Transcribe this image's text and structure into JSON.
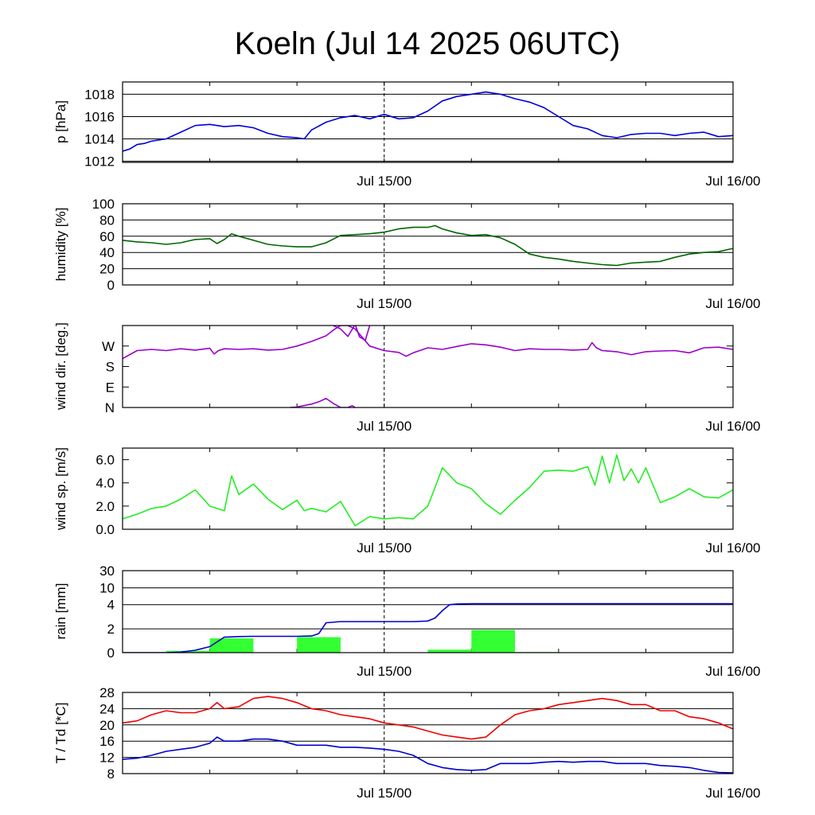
{
  "title": "Koeln (Jul 14 2025 06UTC)",
  "colors": {
    "pressure": "#0000dd",
    "humidity": "#006600",
    "wind_dir": "#9900cc",
    "wind_speed": "#22ee22",
    "rain_bar": "#33ff33",
    "rain_cum": "#0000cc",
    "temperature": "#ee0000",
    "dewpoint": "#0000cc"
  },
  "chart_data": [
    {
      "type": "line",
      "ylabel": "p [hPa]",
      "x_tick_labels": [
        "Jul 15/00",
        "Jul 16/00"
      ],
      "x_tick_hours": [
        18,
        42
      ],
      "xlim": [
        0,
        42
      ],
      "ylim": [
        1011.9,
        1019.1
      ],
      "ytick_values": [
        1012,
        1014,
        1016,
        1018
      ],
      "ytick_labels": [
        "1012",
        "1014",
        "1016",
        "1018"
      ],
      "series": [
        {
          "x": [
            0,
            0.5,
            1,
            1.5,
            2,
            3,
            4,
            5,
            6,
            7,
            8,
            9,
            10,
            11,
            12,
            12.5,
            13,
            14,
            15,
            16,
            17,
            18,
            19,
            20,
            21,
            22,
            23,
            24,
            25,
            26,
            27,
            28,
            29,
            30,
            31,
            32,
            33,
            34,
            35,
            36,
            37,
            38,
            39,
            40,
            41,
            42
          ],
          "y": [
            1012.9,
            1013.1,
            1013.5,
            1013.6,
            1013.8,
            1014.0,
            1014.6,
            1015.2,
            1015.3,
            1015.1,
            1015.2,
            1015.0,
            1014.5,
            1014.2,
            1014.1,
            1014.0,
            1014.8,
            1015.5,
            1015.9,
            1016.1,
            1015.8,
            1016.2,
            1015.8,
            1015.9,
            1016.5,
            1017.4,
            1017.8,
            1018.0,
            1018.2,
            1018.0,
            1017.6,
            1017.3,
            1016.8,
            1016.0,
            1015.2,
            1014.9,
            1014.3,
            1014.1,
            1014.4,
            1014.5,
            1014.5,
            1014.3,
            1014.5,
            1014.6,
            1014.2,
            1014.3
          ]
        }
      ]
    },
    {
      "type": "line",
      "ylabel": "humidity [%]",
      "x_tick_labels": [
        "Jul 15/00",
        "Jul 16/00"
      ],
      "x_tick_hours": [
        18,
        42
      ],
      "xlim": [
        0,
        42
      ],
      "ylim": [
        0,
        100
      ],
      "ytick_values": [
        0,
        20,
        40,
        60,
        80,
        100
      ],
      "ytick_labels": [
        "0",
        "20",
        "40",
        "60",
        "80",
        "100"
      ],
      "series": [
        {
          "x": [
            0,
            1,
            2,
            3,
            4,
            5,
            6,
            6.5,
            7,
            7.5,
            8,
            9,
            10,
            11,
            12,
            13,
            14,
            15,
            16,
            17,
            18,
            19,
            20,
            21,
            21.5,
            22,
            23,
            24,
            25,
            26,
            27,
            28,
            29,
            30,
            31,
            32,
            33,
            34,
            35,
            36,
            37,
            38,
            39,
            40,
            41,
            42
          ],
          "y": [
            55,
            53,
            52,
            50,
            52,
            56,
            57,
            51,
            56,
            63,
            60,
            55,
            50,
            48,
            47,
            47,
            52,
            61,
            62,
            63,
            65,
            69,
            71,
            71,
            73,
            69,
            64,
            61,
            62,
            58,
            50,
            38,
            34,
            32,
            29,
            27,
            25,
            24,
            27,
            28,
            29,
            34,
            38,
            40,
            41,
            45
          ]
        }
      ]
    },
    {
      "type": "line",
      "ylabel": "wind dir. [deg.]",
      "x_tick_labels": [
        "Jul 15/00",
        "Jul 16/00"
      ],
      "x_tick_hours": [
        18,
        42
      ],
      "xlim": [
        0,
        42
      ],
      "ylim": [
        0,
        360
      ],
      "ytick_values": [
        0,
        90,
        180,
        270
      ],
      "ytick_labels": [
        "N",
        "E",
        "S",
        "W"
      ],
      "series": [
        {
          "x": [
            0,
            1,
            2,
            3,
            4,
            5,
            6,
            6.3,
            6.6,
            7,
            8,
            9,
            10,
            11,
            12,
            13,
            14,
            14.5,
            15,
            15.5,
            16,
            17,
            18,
            19,
            19.5,
            20,
            21,
            22,
            23,
            24,
            25,
            26,
            27,
            28,
            29,
            30,
            31,
            32,
            32.3,
            32.6,
            33,
            34,
            35,
            36,
            37,
            38,
            39,
            40,
            41,
            42
          ],
          "y": [
            215,
            250,
            255,
            250,
            258,
            252,
            260,
            235,
            250,
            258,
            255,
            258,
            252,
            255,
            270,
            290,
            315,
            340,
            360,
            360,
            345,
            270,
            250,
            242,
            225,
            240,
            262,
            255,
            268,
            280,
            275,
            265,
            250,
            258,
            255,
            255,
            252,
            255,
            285,
            262,
            250,
            245,
            232,
            245,
            248,
            250,
            240,
            262,
            265,
            255
          ]
        },
        {
          "x": [
            14.5,
            15,
            15.5,
            16,
            16.3,
            16.7,
            17
          ],
          "y": [
            360,
            345,
            312,
            365,
            310,
            295,
            360
          ]
        },
        {
          "x": [
            11.5,
            12,
            13,
            13.5,
            14,
            14.5,
            15,
            15.5,
            15.8,
            16
          ],
          "y": [
            0,
            2,
            15,
            25,
            40,
            18,
            0,
            0,
            8,
            0
          ]
        }
      ]
    },
    {
      "type": "line",
      "ylabel": "wind sp. [m/s]",
      "x_tick_labels": [
        "Jul 15/00",
        "Jul 16/00"
      ],
      "x_tick_hours": [
        18,
        42
      ],
      "xlim": [
        0,
        42
      ],
      "ylim": [
        0,
        7
      ],
      "ytick_values": [
        0,
        2,
        4,
        6
      ],
      "ytick_labels": [
        "0.0",
        "2.0",
        "4.0",
        "6.0"
      ],
      "series": [
        {
          "x": [
            0,
            1,
            2,
            3,
            4,
            5,
            6,
            7,
            7.5,
            8,
            9,
            10,
            11,
            12,
            12.5,
            13,
            14,
            15,
            16,
            17,
            18,
            19,
            20,
            21,
            21.5,
            22,
            23,
            24,
            25,
            26,
            27,
            28,
            29,
            30,
            31,
            32,
            32.5,
            33,
            33.5,
            34,
            34.5,
            35,
            35.5,
            36,
            37,
            38,
            39,
            40,
            41,
            42
          ],
          "y": [
            0.9,
            1.3,
            1.8,
            2.0,
            2.6,
            3.4,
            2.0,
            1.6,
            4.6,
            3.0,
            3.9,
            2.6,
            1.7,
            2.5,
            1.6,
            1.8,
            1.5,
            2.4,
            0.3,
            1.1,
            0.9,
            1.0,
            0.9,
            2.0,
            3.6,
            5.3,
            4.0,
            3.5,
            2.2,
            1.3,
            2.5,
            3.6,
            5.0,
            5.1,
            5.0,
            5.4,
            3.8,
            6.3,
            4.0,
            6.4,
            4.2,
            5.2,
            4.0,
            5.3,
            2.3,
            2.8,
            3.5,
            2.8,
            2.7,
            3.4
          ]
        }
      ]
    },
    {
      "type": "bar",
      "ylabel": "rain [mm]",
      "x_tick_labels": [
        "Jul 15/00",
        "Jul 16/00"
      ],
      "x_tick_hours": [
        18,
        42
      ],
      "xlim": [
        0,
        42
      ],
      "ylim": [
        0,
        30
      ],
      "y_scale": "nonlinear",
      "ytick_values": [
        0,
        2,
        4,
        10,
        30
      ],
      "ytick_labels": [
        "0",
        "2",
        "4",
        "10",
        "30"
      ],
      "bars": [
        {
          "x_start": 0,
          "x_end": 3,
          "value": 0.02
        },
        {
          "x_start": 3,
          "x_end": 6,
          "value": 0.15
        },
        {
          "x_start": 6,
          "x_end": 9,
          "value": 1.2
        },
        {
          "x_start": 9,
          "x_end": 12,
          "value": 0.03
        },
        {
          "x_start": 12,
          "x_end": 15,
          "value": 1.3
        },
        {
          "x_start": 15,
          "x_end": 18,
          "value": 0.02
        },
        {
          "x_start": 18,
          "x_end": 21,
          "value": 0.02
        },
        {
          "x_start": 21,
          "x_end": 24,
          "value": 0.25
        },
        {
          "x_start": 24,
          "x_end": 27,
          "value": 1.9
        },
        {
          "x_start": 27,
          "x_end": 30,
          "value": 0.05
        }
      ],
      "series": [
        {
          "x": [
            0,
            3,
            4,
            5,
            6,
            7,
            8,
            9,
            10,
            11,
            12,
            13,
            13.5,
            14,
            15,
            16,
            17,
            18,
            19,
            20,
            21,
            21.5,
            22,
            22.5,
            23,
            24,
            25,
            30,
            42
          ],
          "y": [
            0,
            0,
            0.05,
            0.2,
            0.5,
            1.3,
            1.35,
            1.37,
            1.37,
            1.37,
            1.37,
            1.4,
            1.6,
            2.5,
            2.6,
            2.6,
            2.6,
            2.6,
            2.6,
            2.6,
            2.65,
            2.9,
            3.5,
            4.0,
            4.25,
            4.35,
            4.35,
            4.35,
            4.35
          ]
        }
      ]
    },
    {
      "type": "line",
      "ylabel": "T / Td [*C]",
      "x_tick_labels": [
        "Jul 15/00",
        "Jul 16/00"
      ],
      "x_tick_hours": [
        18,
        42
      ],
      "xlim": [
        0,
        42
      ],
      "ylim": [
        8,
        28
      ],
      "ytick_values": [
        8,
        12,
        16,
        20,
        24,
        28
      ],
      "ytick_labels": [
        "8",
        "12",
        "16",
        "20",
        "24",
        "28"
      ],
      "series": [
        {
          "x": [
            0,
            1,
            2,
            3,
            4,
            5,
            6,
            6.5,
            7,
            8,
            9,
            10,
            11,
            12,
            13,
            14,
            15,
            16,
            17,
            18,
            19,
            20,
            21,
            22,
            23,
            24,
            25,
            26,
            27,
            28,
            29,
            30,
            31,
            32,
            33,
            34,
            35,
            36,
            37,
            38,
            39,
            40,
            41,
            42
          ],
          "y": [
            20.5,
            21.0,
            22.5,
            23.5,
            23.0,
            23.0,
            24.0,
            25.5,
            24.0,
            24.5,
            26.5,
            27.0,
            26.5,
            25.5,
            24.0,
            23.5,
            22.5,
            22.0,
            21.5,
            20.5,
            20.0,
            19.5,
            18.5,
            17.5,
            17.0,
            16.5,
            17.0,
            20.0,
            22.5,
            23.5,
            24.0,
            25.0,
            25.5,
            26.0,
            26.5,
            26.0,
            25.0,
            25.0,
            23.5,
            23.5,
            22.0,
            21.5,
            20.5,
            19.0
          ]
        },
        {
          "x": [
            0,
            1,
            2,
            3,
            4,
            5,
            6,
            6.5,
            7,
            8,
            9,
            10,
            11,
            12,
            13,
            14,
            15,
            16,
            17,
            18,
            19,
            20,
            21,
            22,
            23,
            24,
            25,
            26,
            27,
            28,
            29,
            30,
            31,
            32,
            33,
            34,
            35,
            36,
            37,
            38,
            39,
            40,
            41,
            42
          ],
          "y": [
            11.5,
            11.8,
            12.5,
            13.5,
            14.0,
            14.5,
            15.5,
            17.0,
            16.0,
            16.0,
            16.5,
            16.5,
            16.0,
            15.0,
            15.0,
            15.0,
            14.5,
            14.5,
            14.3,
            14.0,
            13.5,
            12.5,
            10.5,
            9.5,
            9.0,
            8.8,
            9.0,
            10.5,
            10.5,
            10.5,
            10.8,
            11.0,
            10.8,
            11.0,
            11.0,
            10.5,
            10.5,
            10.5,
            10.0,
            9.8,
            9.5,
            8.8,
            8.3,
            8.2
          ]
        }
      ]
    }
  ]
}
